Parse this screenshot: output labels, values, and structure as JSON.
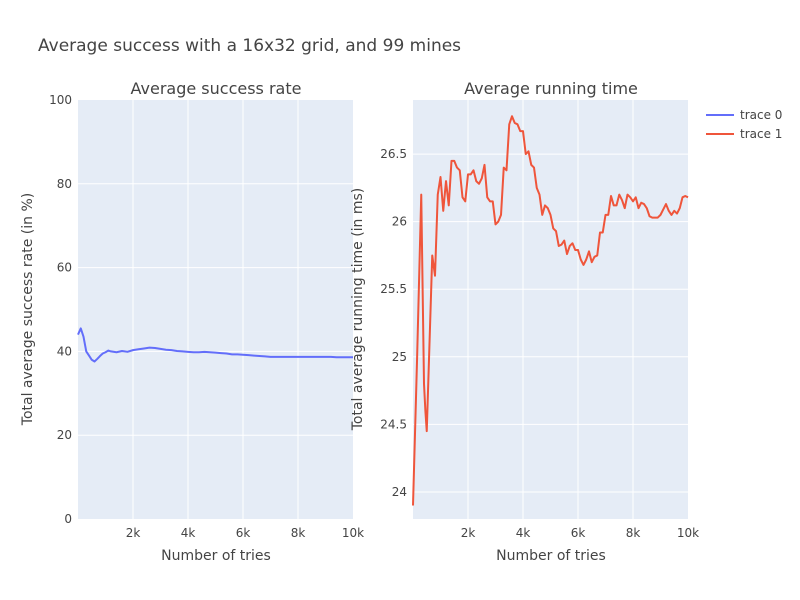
{
  "title": "Average success with a 16x32 grid, and 99 mines",
  "colors": {
    "plot_bg": "#e5ecf6",
    "trace0": "#636efa",
    "trace1": "#ef553b"
  },
  "legend": {
    "placement": "top-right",
    "items": [
      "trace 0",
      "trace 1"
    ]
  },
  "chart_data": [
    {
      "type": "line",
      "title": "Average success rate",
      "xlabel": "Number of tries",
      "ylabel": "Total average success rate (in %)",
      "xlim": [
        0,
        10000
      ],
      "ylim": [
        0,
        100
      ],
      "xticks": [
        {
          "v": 2000,
          "label": "2k"
        },
        {
          "v": 4000,
          "label": "4k"
        },
        {
          "v": 6000,
          "label": "6k"
        },
        {
          "v": 8000,
          "label": "8k"
        },
        {
          "v": 10000,
          "label": "10k"
        }
      ],
      "yticks": [
        {
          "v": 0,
          "label": "0"
        },
        {
          "v": 20,
          "label": "20"
        },
        {
          "v": 40,
          "label": "40"
        },
        {
          "v": 60,
          "label": "60"
        },
        {
          "v": 80,
          "label": "80"
        },
        {
          "v": 100,
          "label": "100"
        }
      ],
      "grid": true,
      "series": [
        {
          "name": "trace 0",
          "color": "#636efa",
          "x": [
            0,
            100,
            200,
            300,
            400,
            500,
            600,
            700,
            800,
            900,
            1000,
            1100,
            1200,
            1400,
            1600,
            1800,
            2000,
            2200,
            2400,
            2600,
            2800,
            3000,
            3200,
            3400,
            3600,
            3800,
            4000,
            4200,
            4400,
            4600,
            4800,
            5000,
            5200,
            5400,
            5600,
            5800,
            6000,
            6200,
            6400,
            6600,
            6800,
            7000,
            7200,
            7400,
            7600,
            7800,
            8000,
            8200,
            8400,
            8600,
            8800,
            9000,
            9200,
            9400,
            9600,
            9800,
            10000
          ],
          "y": [
            44.0,
            45.5,
            43.5,
            40.0,
            39.0,
            38.0,
            37.6,
            38.2,
            38.9,
            39.5,
            39.8,
            40.2,
            40.0,
            39.8,
            40.1,
            39.9,
            40.3,
            40.5,
            40.7,
            40.9,
            40.8,
            40.6,
            40.4,
            40.3,
            40.1,
            40.0,
            39.9,
            39.8,
            39.8,
            39.9,
            39.8,
            39.7,
            39.6,
            39.5,
            39.3,
            39.3,
            39.2,
            39.1,
            39.0,
            38.9,
            38.8,
            38.7,
            38.7,
            38.7,
            38.7,
            38.7,
            38.7,
            38.7,
            38.7,
            38.7,
            38.7,
            38.7,
            38.7,
            38.6,
            38.6,
            38.6,
            38.6
          ]
        }
      ]
    },
    {
      "type": "line",
      "title": "Average running time",
      "xlabel": "Number of tries",
      "ylabel": "Total average running time (in ms)",
      "xlim": [
        0,
        10000
      ],
      "ylim": [
        23.8,
        26.9
      ],
      "xticks": [
        {
          "v": 2000,
          "label": "2k"
        },
        {
          "v": 4000,
          "label": "4k"
        },
        {
          "v": 6000,
          "label": "6k"
        },
        {
          "v": 8000,
          "label": "8k"
        },
        {
          "v": 10000,
          "label": "10k"
        }
      ],
      "yticks": [
        {
          "v": 24,
          "label": "24"
        },
        {
          "v": 24.5,
          "label": "24.5"
        },
        {
          "v": 25,
          "label": "25"
        },
        {
          "v": 25.5,
          "label": "25.5"
        },
        {
          "v": 26,
          "label": "26"
        },
        {
          "v": 26.5,
          "label": "26.5"
        }
      ],
      "grid": true,
      "series": [
        {
          "name": "trace 1",
          "color": "#ef553b",
          "x": [
            0,
            150,
            300,
            400,
            450,
            500,
            600,
            700,
            800,
            900,
            1000,
            1100,
            1200,
            1300,
            1400,
            1500,
            1600,
            1700,
            1800,
            1900,
            2000,
            2100,
            2200,
            2300,
            2400,
            2500,
            2600,
            2700,
            2800,
            2900,
            3000,
            3100,
            3200,
            3300,
            3400,
            3500,
            3600,
            3700,
            3800,
            3900,
            4000,
            4100,
            4200,
            4300,
            4400,
            4500,
            4600,
            4700,
            4800,
            4900,
            5000,
            5100,
            5200,
            5300,
            5400,
            5500,
            5600,
            5700,
            5800,
            5900,
            6000,
            6100,
            6200,
            6300,
            6400,
            6500,
            6600,
            6700,
            6800,
            6900,
            7000,
            7100,
            7200,
            7300,
            7400,
            7500,
            7600,
            7700,
            7800,
            7900,
            8000,
            8100,
            8200,
            8300,
            8400,
            8500,
            8600,
            8700,
            8800,
            8900,
            9000,
            9100,
            9200,
            9300,
            9400,
            9500,
            9600,
            9700,
            9800,
            9900,
            10000
          ],
          "y": [
            23.9,
            25.0,
            26.2,
            24.8,
            24.6,
            24.45,
            25.1,
            25.75,
            25.6,
            26.2,
            26.33,
            26.08,
            26.3,
            26.12,
            26.45,
            26.45,
            26.4,
            26.38,
            26.18,
            26.15,
            26.35,
            26.35,
            26.38,
            26.3,
            26.28,
            26.32,
            26.42,
            26.18,
            26.15,
            26.15,
            25.98,
            26.0,
            26.05,
            26.4,
            26.38,
            26.72,
            26.78,
            26.73,
            26.72,
            26.67,
            26.67,
            26.5,
            26.52,
            26.42,
            26.4,
            26.25,
            26.2,
            26.05,
            26.12,
            26.1,
            26.05,
            25.95,
            25.93,
            25.82,
            25.83,
            25.86,
            25.76,
            25.82,
            25.84,
            25.79,
            25.79,
            25.72,
            25.68,
            25.72,
            25.78,
            25.7,
            25.74,
            25.75,
            25.92,
            25.92,
            26.05,
            26.05,
            26.19,
            26.12,
            26.12,
            26.2,
            26.16,
            26.1,
            26.2,
            26.18,
            26.15,
            26.18,
            26.1,
            26.14,
            26.13,
            26.1,
            26.04,
            26.03,
            26.03,
            26.03,
            26.05,
            26.09,
            26.13,
            26.08,
            26.05,
            26.08,
            26.06,
            26.1,
            26.18,
            26.19,
            26.18
          ]
        }
      ]
    }
  ]
}
